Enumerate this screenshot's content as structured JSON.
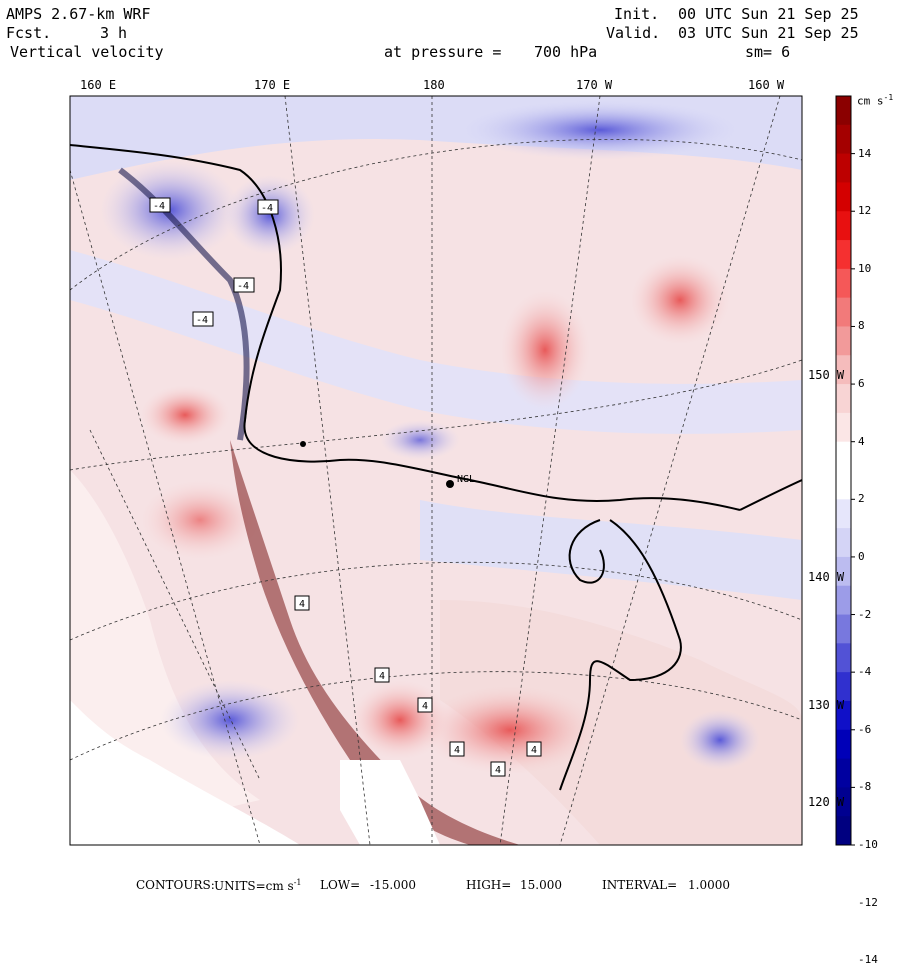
{
  "header": {
    "model": "AMPS 2.67-km WRF",
    "init_label": "Init.",
    "init_value": "00 UTC Sun 21 Sep 25",
    "fcst_label": "Fcst.",
    "fcst_value": "3 h",
    "valid_label": "Valid.",
    "valid_value": "03 UTC Sun 21 Sep 25",
    "field": "Vertical velocity",
    "level_label": "at pressure =",
    "level_value": "700 hPa",
    "smoothing": "sm= 6"
  },
  "map": {
    "longitude_labels": [
      "160 E",
      "170 E",
      "180",
      "170 W",
      "160 W"
    ],
    "latitude_labels": [
      "150 W",
      "140 W",
      "130 W",
      "120 W"
    ],
    "stations": [
      "NGL"
    ],
    "contour_labels": [
      "-4",
      "-4",
      "-4",
      "-4",
      "4",
      "4",
      "4",
      "4",
      "4",
      "4"
    ]
  },
  "colorbar": {
    "units_label": "cm s",
    "units_exponent": "-1",
    "tick_labels": [
      "14",
      "12",
      "10",
      "8",
      "6",
      "4",
      "2",
      "0",
      "-2",
      "-4",
      "-6",
      "-8",
      "-10",
      "-12",
      "-14"
    ],
    "colors": [
      "#8b0000",
      "#a40000",
      "#bd0000",
      "#d40000",
      "#e81010",
      "#f53030",
      "#f55858",
      "#f27a7a",
      "#f29a9a",
      "#f5bcbc",
      "#f8d4d4",
      "#fbe6e6",
      "#ffffff",
      "#ffffff",
      "#e6e6fb",
      "#d4d4f6",
      "#bcbcf0",
      "#9c9ce8",
      "#7878de",
      "#5252d6",
      "#3030cf",
      "#1010c8",
      "#0000b8",
      "#0000a0",
      "#000090",
      "#000080"
    ]
  },
  "footer": {
    "contours_label": "CONTOURS:",
    "units_text": "UNITS=cm s",
    "units_exponent": "-1",
    "low_label": "LOW=",
    "low_value": "-15.000",
    "high_label": "HIGH=",
    "high_value": "15.000",
    "interval_label": "INTERVAL=",
    "interval_value": "1.0000"
  }
}
